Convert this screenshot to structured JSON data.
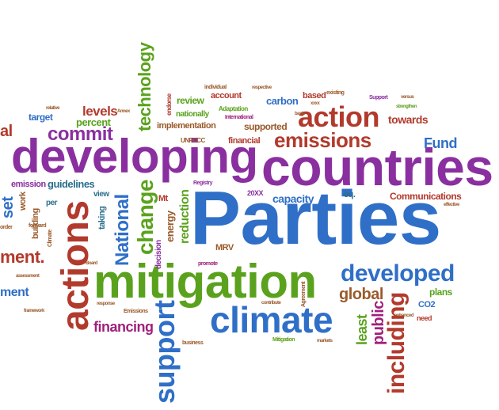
{
  "words": {
    "parties": "Parties",
    "countries": "countries",
    "developing": "developing",
    "mitigation": "mitigation",
    "climate": "climate",
    "actions": "actions",
    "developed": "developed",
    "action": "action",
    "emissions": "emissions",
    "support": "support",
    "including": "including",
    "technology": "technology",
    "change": "change",
    "national": "National",
    "commit": "commit",
    "financing": "financing",
    "global": "global",
    "fund": "Fund",
    "public": "public",
    "least": "least",
    "capacity": "capacity",
    "towards": "towards",
    "carbon": "carbon",
    "levels": "levels",
    "percent": "percent",
    "guidelines": "guidelines",
    "target": "target",
    "review": "review",
    "reduction": "reduction",
    "energy": "energy",
    "communications": "Communications",
    "implementation": "implementation",
    "supported": "supported",
    "financial": "financial",
    "based": "based",
    "account": "account",
    "nationally": "nationally",
    "plans": "plans",
    "mrv": "MRV",
    "co2": "CO2",
    "eq": "eq.",
    "emission": "emission",
    "building": "building",
    "work": "work",
    "view": "view",
    "per": "per",
    "taking": "taking",
    "mt": "Mt",
    "decision": "decision",
    "set": "set",
    "ment": "ment",
    "ment2": "ment.",
    "al": "al",
    "need": "need",
    "20xx": "20XX",
    "unfccc": "UNFCCC",
    "adaptation": "Adaptation",
    "international": "International",
    "registry": "Registry",
    "promote": "promote",
    "endorse": "endorse",
    "individual": "individual",
    "existing": "existing",
    "support_small": "Support",
    "agreement": "Agreement",
    "mitigation_small": "Mitigation",
    "climate_small": "Climate",
    "emissions_small": "Emissions",
    "business": "business",
    "framework": "framework",
    "markets": "markets",
    "forward": "forward",
    "order": "order",
    "board": "Board",
    "respective": "respective",
    "strengthen": "strengthen",
    "effective": "effective",
    "assessment": "assessment",
    "response": "response",
    "contribute": "contribute",
    "enhanced": "enhanced",
    "annex": "Annex",
    "basis": "basis",
    "xxxx": "xxxx",
    "versus": "versus",
    "relative": "relative"
  }
}
